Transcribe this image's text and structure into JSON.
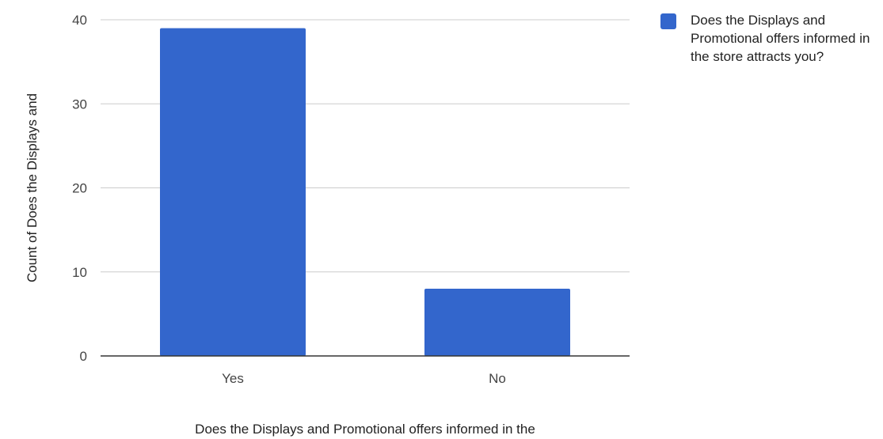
{
  "chart_data": {
    "type": "bar",
    "categories": [
      "Yes",
      "No"
    ],
    "series": [
      {
        "name": "Does the Displays and Promotional offers informed in the store attracts you?",
        "values": [
          39,
          8
        ],
        "color": "#3366CC"
      }
    ],
    "xlabel": "Does the Displays and Promotional offers informed in the",
    "ylabel": "Count of Does the Displays and",
    "ylim": [
      0,
      40
    ],
    "yticks": [
      0,
      10,
      20,
      30,
      40
    ],
    "grid": true,
    "legend_position": "top-right",
    "colors": {
      "grid": "#cccccc",
      "baseline": "#333333"
    }
  }
}
